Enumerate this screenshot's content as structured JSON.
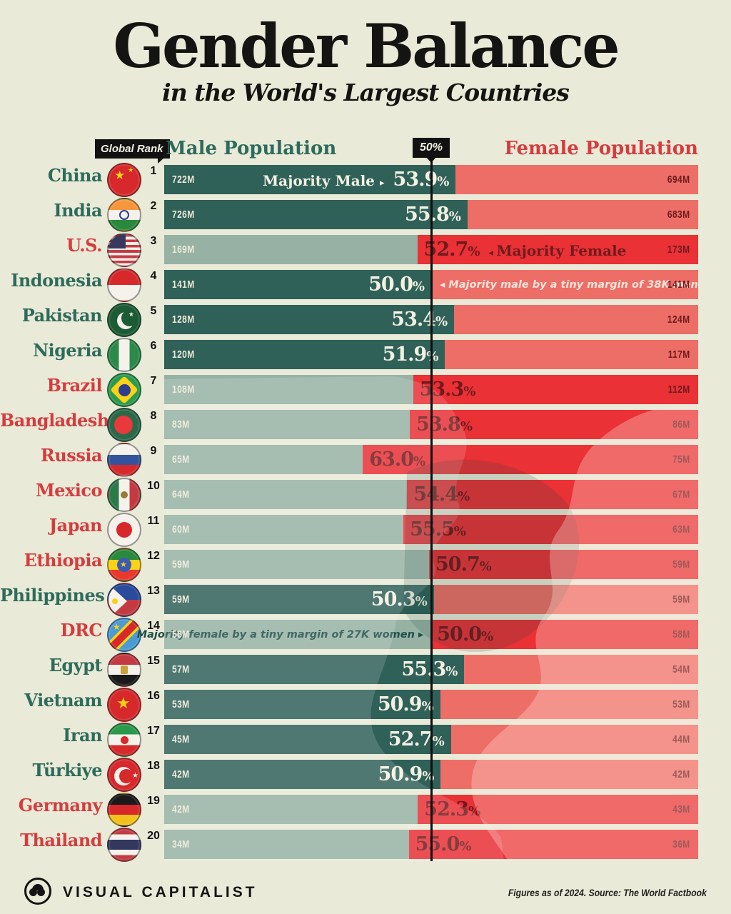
{
  "title": "Gender Balance",
  "subtitle": "in the World's Largest Countries",
  "header": {
    "rank_badge": "Global Rank",
    "male": "Male Population",
    "center_badge": "50%",
    "female": "Female Population"
  },
  "arrows": {
    "right": "▸",
    "left": "◂"
  },
  "colors": {
    "background": "#e9ead7",
    "male_dark": "#2f6159",
    "male_light": "#97b2a4",
    "female_strong": "#e93136",
    "female_salmon": "#ed6e66",
    "maroon_text": "#701a1e",
    "cream_text": "#f3f1e2",
    "male_name": "#2e6b5c",
    "female_name": "#d63c3e",
    "line": "#101010"
  },
  "footer": {
    "brand": "VISUAL CAPITALIST",
    "source": "Figures as of 2024. Source: The World Factbook"
  },
  "chart_data": {
    "type": "bar",
    "title": "Gender Balance in the World's Largest Countries",
    "center_reference": "50%",
    "legend": [
      "Male Population",
      "Female Population"
    ],
    "rows": [
      {
        "rank": "1",
        "country": "China",
        "slug": "china",
        "majority": "male",
        "male_value": "722M",
        "female_value": "694M",
        "pct": "53.9%",
        "split_pct": 54.6,
        "callout": "Majority Male"
      },
      {
        "rank": "2",
        "country": "India",
        "slug": "india",
        "majority": "male",
        "male_value": "726M",
        "female_value": "683M",
        "pct": "55.8%",
        "split_pct": 56.8
      },
      {
        "rank": "3",
        "country": "U.S.",
        "slug": "us",
        "majority": "female",
        "male_value": "169M",
        "female_value": "173M",
        "pct": "52.7%",
        "split_pct": 47.4,
        "callout": "Majority Female"
      },
      {
        "rank": "4",
        "country": "Indonesia",
        "slug": "indonesia",
        "majority": "male",
        "male_value": "141M",
        "female_value": "141M",
        "pct": "50.0%",
        "split_pct": 50.1,
        "note": "Majority male by a tiny margin of 38K men"
      },
      {
        "rank": "5",
        "country": "Pakistan",
        "slug": "pakistan",
        "majority": "male",
        "male_value": "128M",
        "female_value": "124M",
        "pct": "53.4%",
        "split_pct": 54.3
      },
      {
        "rank": "6",
        "country": "Nigeria",
        "slug": "nigeria",
        "majority": "male",
        "male_value": "120M",
        "female_value": "117M",
        "pct": "51.9%",
        "split_pct": 52.6
      },
      {
        "rank": "7",
        "country": "Brazil",
        "slug": "brazil",
        "majority": "female",
        "male_value": "108M",
        "female_value": "112M",
        "pct": "53.3%",
        "split_pct": 46.6
      },
      {
        "rank": "8",
        "country": "Bangladesh",
        "slug": "bangladesh",
        "majority": "female",
        "male_value": "83M",
        "female_value": "86M",
        "pct": "53.8%",
        "split_pct": 46.0
      },
      {
        "rank": "9",
        "country": "Russia",
        "slug": "russia",
        "majority": "female",
        "male_value": "65M",
        "female_value": "75M",
        "pct": "63.0%",
        "split_pct": 37.2
      },
      {
        "rank": "10",
        "country": "Mexico",
        "slug": "mexico",
        "majority": "female",
        "male_value": "64M",
        "female_value": "67M",
        "pct": "54.4%",
        "split_pct": 45.5
      },
      {
        "rank": "11",
        "country": "Japan",
        "slug": "japan",
        "majority": "female",
        "male_value": "60M",
        "female_value": "63M",
        "pct": "55.5%",
        "split_pct": 44.8
      },
      {
        "rank": "12",
        "country": "Ethiopia",
        "slug": "ethiopia",
        "majority": "female",
        "male_value": "59M",
        "female_value": "59M",
        "pct": "50.7%",
        "split_pct": 49.6
      },
      {
        "rank": "13",
        "country": "Philippines",
        "slug": "philippines",
        "majority": "male",
        "male_value": "59M",
        "female_value": "59M",
        "pct": "50.3%",
        "split_pct": 50.5
      },
      {
        "rank": "14",
        "country": "DRC",
        "slug": "drc",
        "majority": "female",
        "male_value": "58M",
        "female_value": "58M",
        "pct": "50.0%",
        "split_pct": 49.9,
        "note": "Majority female by a tiny margin of 27K women"
      },
      {
        "rank": "15",
        "country": "Egypt",
        "slug": "egypt",
        "majority": "male",
        "male_value": "57M",
        "female_value": "54M",
        "pct": "55.3%",
        "split_pct": 56.2
      },
      {
        "rank": "16",
        "country": "Vietnam",
        "slug": "vietnam",
        "majority": "male",
        "male_value": "53M",
        "female_value": "53M",
        "pct": "50.9%",
        "split_pct": 51.7
      },
      {
        "rank": "17",
        "country": "Iran",
        "slug": "iran",
        "majority": "male",
        "male_value": "45M",
        "female_value": "44M",
        "pct": "52.7%",
        "split_pct": 53.7
      },
      {
        "rank": "18",
        "country": "Türkiye",
        "slug": "turkiye",
        "majority": "male",
        "male_value": "42M",
        "female_value": "42M",
        "pct": "50.9%",
        "split_pct": 51.8
      },
      {
        "rank": "19",
        "country": "Germany",
        "slug": "germany",
        "majority": "female",
        "male_value": "42M",
        "female_value": "43M",
        "pct": "52.3%",
        "split_pct": 47.5
      },
      {
        "rank": "20",
        "country": "Thailand",
        "slug": "thailand",
        "majority": "female",
        "male_value": "34M",
        "female_value": "36M",
        "pct": "55.0%",
        "split_pct": 45.8
      }
    ]
  }
}
